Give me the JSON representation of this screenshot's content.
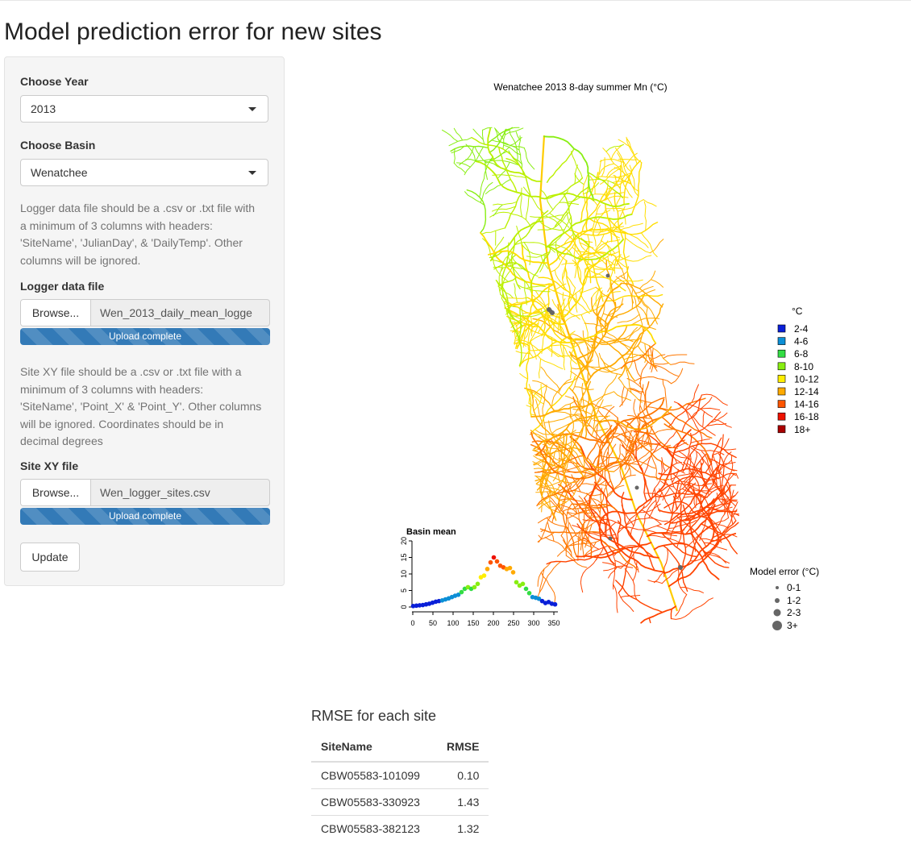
{
  "page": {
    "title": "Model prediction error for new sites"
  },
  "sidebar": {
    "year": {
      "label": "Choose Year",
      "value": "2013"
    },
    "basin": {
      "label": "Choose Basin",
      "value": "Wenatchee"
    },
    "logger_help": [
      "Logger data file should be a .csv or .txt file with",
      "a minimum of 3 columns with headers:",
      "'SiteName', 'JulianDay', & 'DailyTemp'. Other",
      "columns will be ignored."
    ],
    "logger_file": {
      "label": "Logger data file",
      "browse": "Browse...",
      "filename": "Wen_2013_daily_mean_logge",
      "status": "Upload complete",
      "progress_percent": 100
    },
    "xy_help": [
      "Site XY file should be a .csv or .txt file with a",
      "minimum of 3 columns with headers:",
      "'SiteName', 'Point_X' & 'Point_Y'. Other columns",
      "will be ignored. Coordinates should be in",
      "decimal degrees"
    ],
    "xy_file": {
      "label": "Site XY file",
      "browse": "Browse...",
      "filename": "Wen_logger_sites.csv",
      "status": "Upload complete",
      "progress_percent": 100
    },
    "update_label": "Update"
  },
  "map": {
    "title": "Wenatchee 2013 8-day summer Mn (°C)",
    "temp_legend": {
      "title": "°C",
      "items": [
        {
          "label": "2-4",
          "color": "#0a1fd8"
        },
        {
          "label": "4-6",
          "color": "#0c8fd6"
        },
        {
          "label": "6-8",
          "color": "#33dd44"
        },
        {
          "label": "8-10",
          "color": "#88ee11"
        },
        {
          "label": "10-12",
          "color": "#ffee00"
        },
        {
          "label": "12-14",
          "color": "#ffaa00"
        },
        {
          "label": "14-16",
          "color": "#ff5500"
        },
        {
          "label": "16-18",
          "color": "#ee1100"
        },
        {
          "label": "18+",
          "color": "#aa0000"
        }
      ]
    },
    "error_legend": {
      "title": "Model error (°C)",
      "items": [
        {
          "label": "0-1"
        },
        {
          "label": "1-2"
        },
        {
          "label": "2-3"
        },
        {
          "label": "3+"
        }
      ]
    }
  },
  "chart_data": {
    "type": "scatter",
    "title": "Basin mean",
    "xlabel": "",
    "ylabel": "",
    "xlim": [
      0,
      360
    ],
    "ylim": [
      0,
      20
    ],
    "x_ticks": [
      "0",
      "50",
      "100",
      "150",
      "200",
      "250",
      "300",
      "350"
    ],
    "y_ticks": [
      "0",
      "5",
      "10",
      "15",
      "20"
    ],
    "points": [
      [
        1,
        0.3
      ],
      [
        9,
        0.4
      ],
      [
        17,
        0.5
      ],
      [
        25,
        0.6
      ],
      [
        33,
        0.8
      ],
      [
        41,
        1.0
      ],
      [
        49,
        1.3
      ],
      [
        57,
        1.6
      ],
      [
        65,
        1.8
      ],
      [
        73,
        2.0
      ],
      [
        81,
        2.3
      ],
      [
        89,
        2.6
      ],
      [
        97,
        3.0
      ],
      [
        105,
        3.4
      ],
      [
        113,
        3.7
      ],
      [
        121,
        4.5
      ],
      [
        129,
        5.5
      ],
      [
        137,
        6.0
      ],
      [
        145,
        5.5
      ],
      [
        153,
        6.0
      ],
      [
        161,
        7.0
      ],
      [
        169,
        9.0
      ],
      [
        177,
        9.5
      ],
      [
        185,
        11.5
      ],
      [
        193,
        13.5
      ],
      [
        201,
        15.0
      ],
      [
        209,
        13.8
      ],
      [
        217,
        12.5
      ],
      [
        225,
        12.0
      ],
      [
        233,
        11.5
      ],
      [
        241,
        11.8
      ],
      [
        249,
        10.5
      ],
      [
        257,
        7.5
      ],
      [
        265,
        6.5
      ],
      [
        273,
        7.0
      ],
      [
        281,
        5.5
      ],
      [
        289,
        4.2
      ],
      [
        297,
        3.0
      ],
      [
        305,
        2.8
      ],
      [
        313,
        2.5
      ],
      [
        321,
        1.8
      ],
      [
        329,
        1.2
      ],
      [
        337,
        1.5
      ],
      [
        345,
        1.0
      ],
      [
        353,
        0.8
      ]
    ]
  },
  "rmse": {
    "title": "RMSE for each site",
    "columns": [
      "SiteName",
      "RMSE"
    ],
    "rows": [
      [
        "CBW05583-101099",
        "0.10"
      ],
      [
        "CBW05583-330923",
        "1.43"
      ],
      [
        "CBW05583-382123",
        "1.32"
      ]
    ]
  }
}
